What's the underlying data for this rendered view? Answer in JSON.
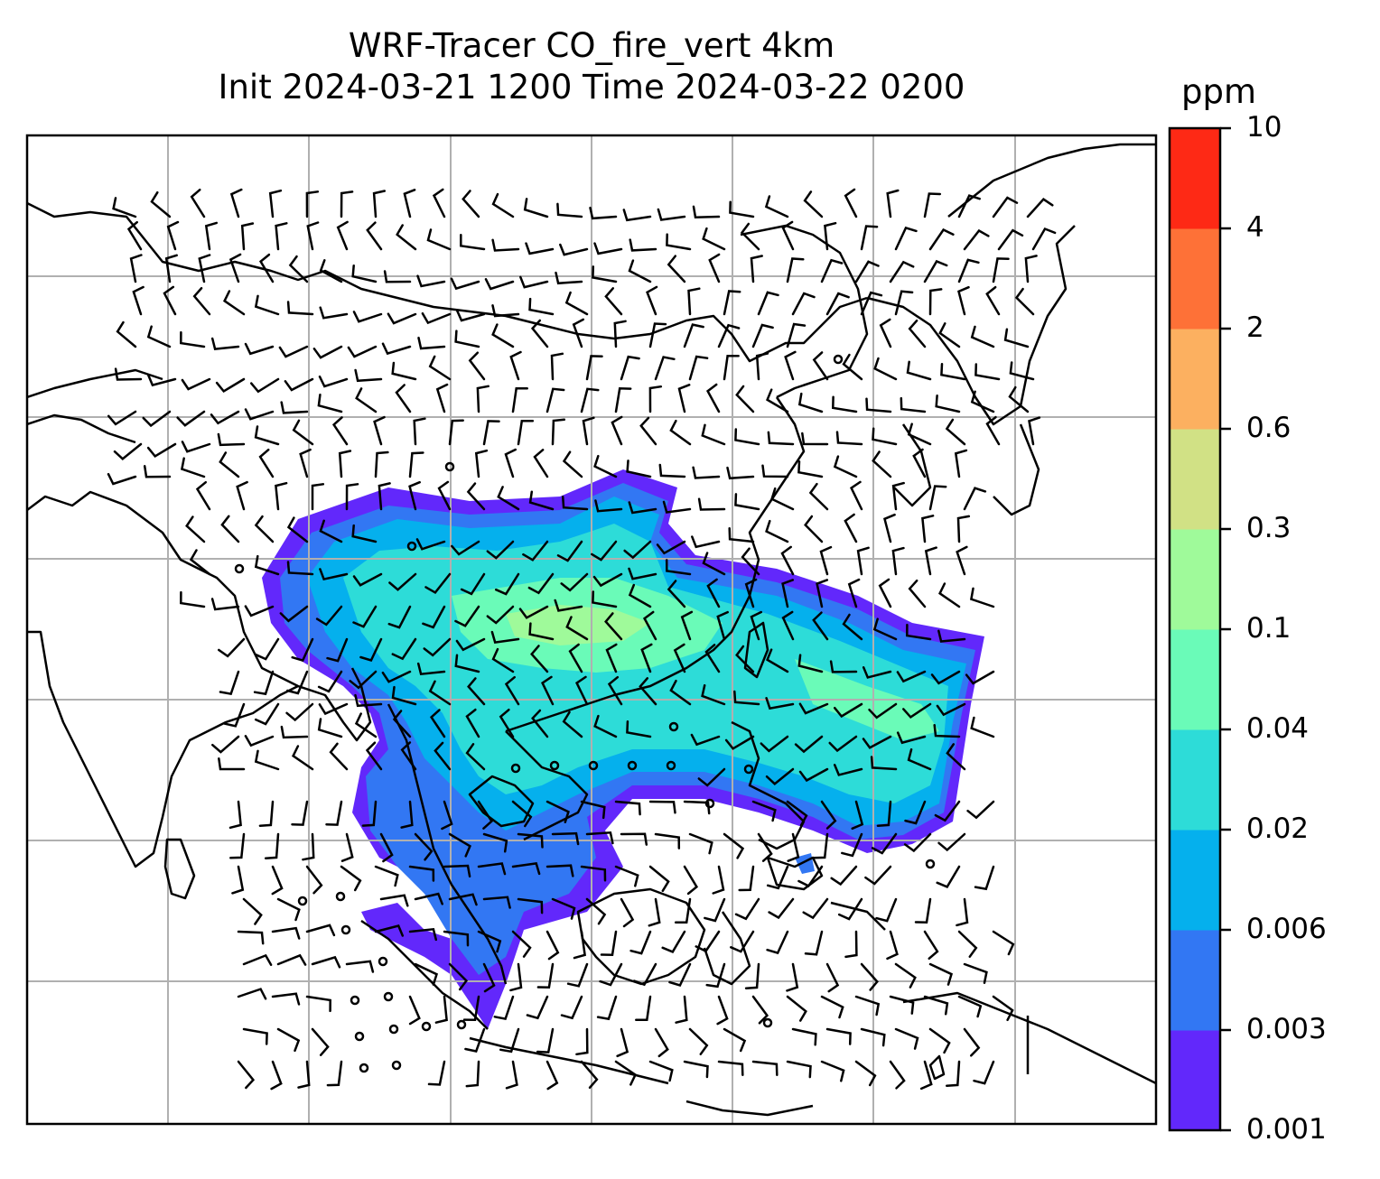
{
  "title": {
    "line1": "WRF-Tracer CO_fire_vert 4km",
    "line2": "Init 2024-03-21 1200 Time 2024-03-22 0200"
  },
  "colorbar": {
    "unit": "ppm",
    "levels": [
      "0.001",
      "0.003",
      "0.006",
      "0.02",
      "0.04",
      "0.1",
      "0.3",
      "0.6",
      "2",
      "4",
      "10"
    ],
    "colors": [
      "#6228fb",
      "#3277f3",
      "#05b0ed",
      "#2ddcd8",
      "#6afbb8",
      "#9ffa9a",
      "#d1e185",
      "#fcb060",
      "#fe7137",
      "#fe2915"
    ]
  },
  "map": {
    "projection": "lat-lon grid with coastlines and country borders",
    "gridlines": true,
    "overlay": "wind barbs"
  }
}
